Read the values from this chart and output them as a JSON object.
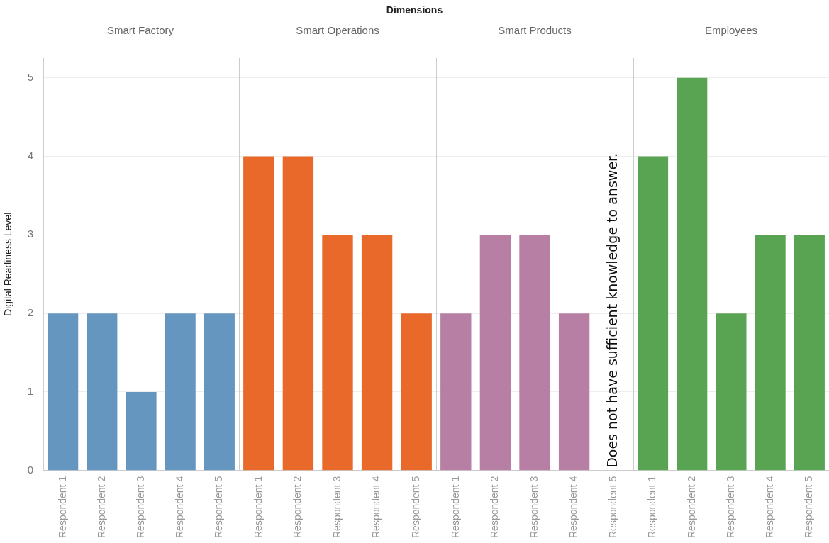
{
  "chart_data": [
    {
      "type": "bar",
      "title": "Smart Factory",
      "ylabel": "Digital Readiness Level",
      "annotations": [
        "Dimensions"
      ],
      "categories": [
        "Respondent 1",
        "Respondent 2",
        "Respondent 3",
        "Respondent 4",
        "Respondent 5"
      ],
      "values": [
        2,
        2,
        1,
        2,
        2
      ],
      "color": "#6596c0",
      "ylim": [
        0,
        5.25
      ],
      "yticks": [
        0,
        1,
        2,
        3,
        4,
        5
      ],
      "grid": "y",
      "legend": false
    },
    {
      "type": "bar",
      "title": "Smart Operations",
      "categories": [
        "Respondent 1",
        "Respondent 2",
        "Respondent 3",
        "Respondent 4",
        "Respondent 5"
      ],
      "values": [
        4,
        4,
        3,
        3,
        2
      ],
      "color": "#e8692a",
      "ylim": [
        0,
        5.25
      ],
      "yticks": [
        0,
        1,
        2,
        3,
        4,
        5
      ],
      "grid": "y",
      "legend": false,
      "tick_labels": "x"
    },
    {
      "type": "bar",
      "title": "Smart Products",
      "categories": [
        "Respondent 1",
        "Respondent 2",
        "Respondent 3",
        "Respondent 4",
        "Respondent 5"
      ],
      "values": [
        2,
        3,
        3,
        2,
        null
      ],
      "color": "#b87fa5",
      "ylim": [
        0,
        5.25
      ],
      "yticks": [
        0,
        1,
        2,
        3,
        4,
        5
      ],
      "grid": "y",
      "legend": false,
      "tick_labels": "x",
      "annotations": [
        "Does not have sufficient knowledge to answer."
      ]
    },
    {
      "type": "bar",
      "title": "Employees",
      "categories": [
        "Respondent 1",
        "Respondent 2",
        "Respondent 3",
        "Respondent 4",
        "Respondent 5"
      ],
      "values": [
        4,
        5,
        2,
        3,
        3
      ],
      "color": "#59a453",
      "ylim": [
        0,
        5.25
      ],
      "yticks": [
        0,
        1,
        2,
        3,
        4,
        5
      ],
      "grid": "y",
      "legend": false,
      "tick_labels": "x"
    }
  ]
}
